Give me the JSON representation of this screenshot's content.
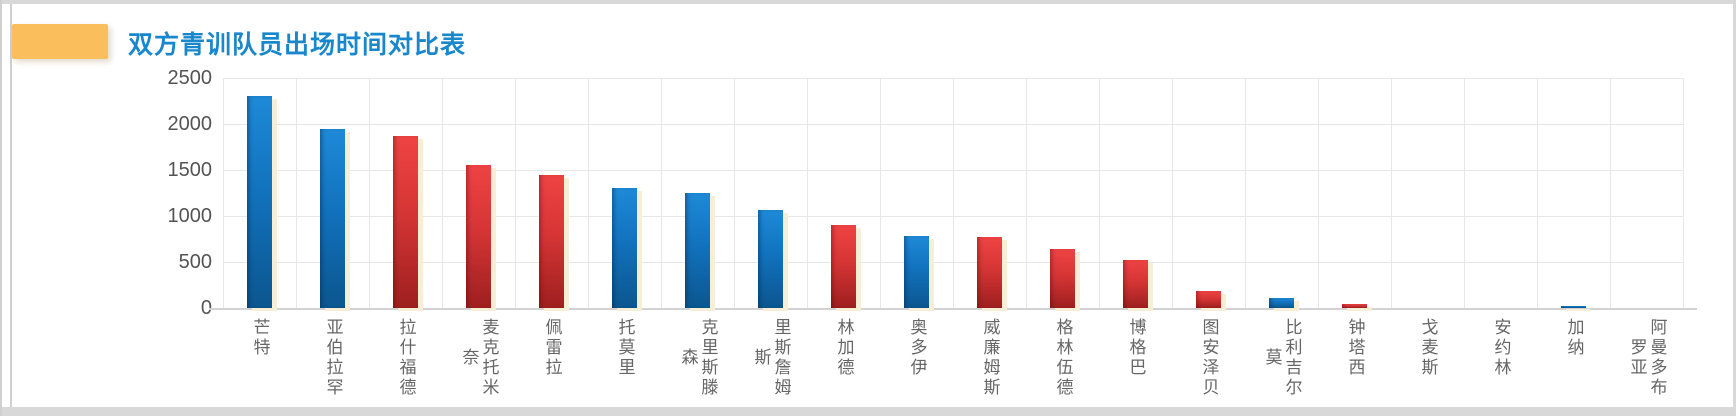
{
  "page": {
    "background": "#ffffff",
    "frame_color": "#d8d8d8"
  },
  "header": {
    "accent_bar_color": "#fbbe5c",
    "title": "双方青训队员出场时间对比表",
    "title_color": "#1987cb"
  },
  "chart_data": {
    "type": "bar",
    "title": "双方青训队员出场时间对比表",
    "categories": [
      "芒特",
      "亚伯拉罕",
      "拉什福德",
      "麦克托米奈",
      "佩雷拉",
      "托莫里",
      "克里斯滕森",
      "里斯詹姆斯",
      "林加德",
      "奥多伊",
      "威廉姆斯",
      "格林伍德",
      "博格巴",
      "图安泽贝",
      "比利吉尔莫",
      "钟塔西",
      "戈麦斯",
      "安约林",
      "加纳",
      "阿曼多布罗亚"
    ],
    "values": [
      2300,
      1950,
      1870,
      1550,
      1450,
      1300,
      1250,
      1070,
      900,
      780,
      775,
      645,
      520,
      180,
      110,
      45,
      0,
      0,
      20,
      0
    ],
    "bar_teams": [
      "blue",
      "blue",
      "red",
      "red",
      "red",
      "blue",
      "blue",
      "blue",
      "red",
      "blue",
      "red",
      "red",
      "red",
      "red",
      "blue",
      "red",
      "red",
      "blue",
      "blue",
      "blue"
    ],
    "team_colors": {
      "blue": "#1272bd",
      "red": "#d63535"
    },
    "bar_shadow_color": "#f7eed6",
    "xlabel": "",
    "ylabel": "",
    "ylim": [
      0,
      2500
    ],
    "yticks": [
      0,
      500,
      1000,
      1500,
      2000,
      2500
    ],
    "grid": true,
    "legend_position": "none",
    "x_label_orientation": "vertical"
  }
}
